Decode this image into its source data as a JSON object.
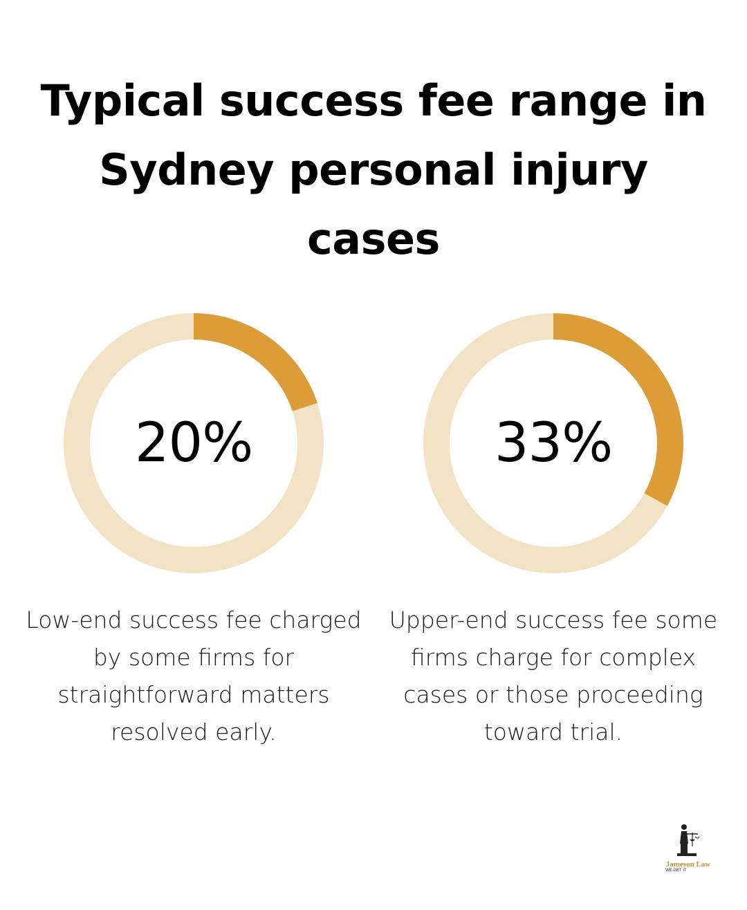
{
  "chart_data": {
    "type": "pie",
    "title": "Typical success fee range in Sydney personal injury cases",
    "charts": [
      {
        "value": 20,
        "value_label": "20%",
        "description": "Low-end success fee charged by some firms for straightforward matters resolved early."
      },
      {
        "value": 33,
        "value_label": "33%",
        "description": "Upper-end success fee some firms charge for complex cases or those proceeding toward trial."
      }
    ]
  },
  "colors": {
    "filled": "#dc9d38",
    "track": "#f3e3c5",
    "text": "#000000"
  },
  "logo": {
    "name": "Jameson Law",
    "tagline": "WE GET IT",
    "icon": "scales-of-justice-icon"
  }
}
